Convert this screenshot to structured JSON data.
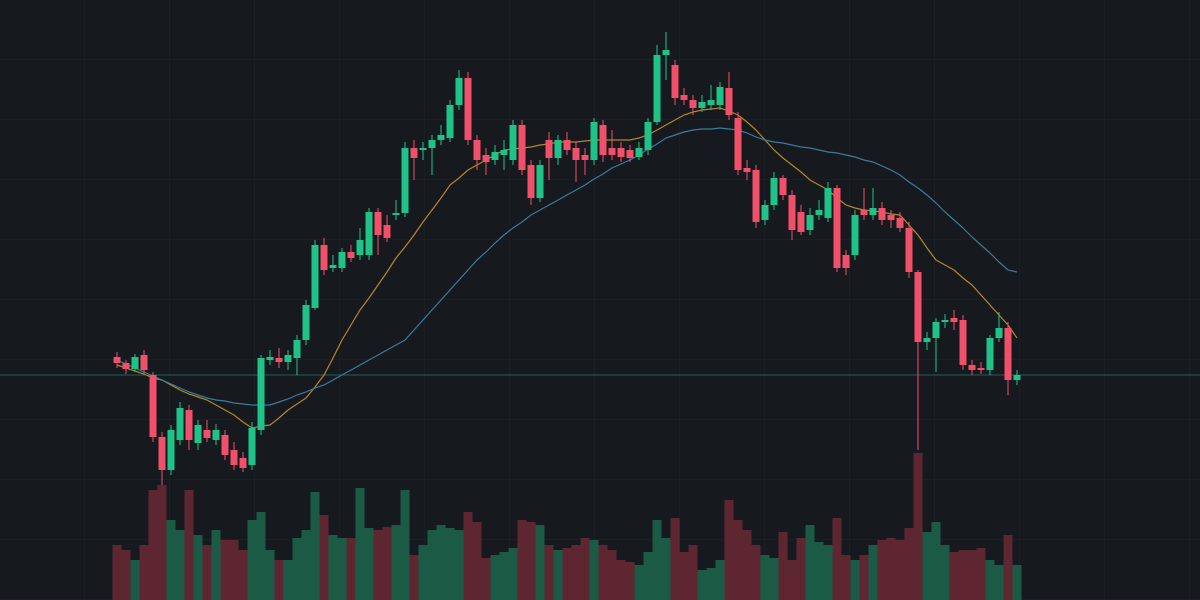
{
  "chart_data": {
    "type": "candlestick",
    "open": [
      243,
      237,
      231,
      245,
      225,
      163,
      130,
      160,
      190,
      157,
      170,
      160,
      165,
      150,
      142,
      135,
      170,
      240,
      242,
      238,
      242,
      260,
      292,
      355,
      332,
      332,
      348,
      345,
      345,
      388,
      375,
      385,
      387,
      452,
      450,
      452,
      460,
      462,
      495,
      522,
      460,
      445,
      440,
      445,
      440,
      475,
      435,
      402,
      460,
      442,
      460,
      452,
      445,
      440,
      475,
      452,
      452,
      450,
      443,
      450,
      478,
      545,
      535,
      505,
      500,
      492,
      495,
      495,
      512,
      482,
      432,
      430,
      380,
      395,
      422,
      405,
      388,
      370,
      385,
      382,
      412,
      345,
      345,
      390,
      385,
      392,
      385,
      382,
      372,
      328,
      258,
      262,
      278,
      282,
      280,
      235,
      232,
      230,
      262,
      272,
      220
    ],
    "high": [
      248,
      240,
      246,
      250,
      228,
      168,
      175,
      198,
      195,
      180,
      180,
      176,
      170,
      158,
      148,
      178,
      245,
      250,
      252,
      250,
      265,
      300,
      360,
      362,
      345,
      352,
      355,
      372,
      392,
      392,
      385,
      400,
      458,
      460,
      458,
      465,
      475,
      500,
      530,
      528,
      465,
      452,
      455,
      460,
      480,
      480,
      440,
      440,
      468,
      465,
      468,
      458,
      452,
      482,
      480,
      470,
      458,
      455,
      458,
      482,
      555,
      568,
      540,
      512,
      505,
      505,
      515,
      518,
      528,
      488,
      440,
      435,
      400,
      428,
      425,
      410,
      395,
      392,
      400,
      418,
      415,
      350,
      390,
      412,
      412,
      398,
      390,
      388,
      378,
      330,
      268,
      282,
      286,
      290,
      285,
      240,
      238,
      265,
      288,
      278,
      230
    ],
    "low": [
      232,
      226,
      228,
      226,
      158,
      115,
      125,
      155,
      150,
      150,
      158,
      155,
      140,
      130,
      128,
      130,
      165,
      235,
      232,
      230,
      225,
      255,
      290,
      325,
      328,
      328,
      338,
      340,
      340,
      345,
      358,
      380,
      383,
      420,
      440,
      425,
      455,
      458,
      490,
      455,
      430,
      425,
      435,
      430,
      435,
      425,
      395,
      398,
      420,
      435,
      445,
      418,
      425,
      435,
      438,
      440,
      438,
      438,
      440,
      445,
      475,
      520,
      495,
      495,
      485,
      488,
      490,
      490,
      480,
      425,
      420,
      372,
      375,
      390,
      400,
      360,
      365,
      365,
      380,
      378,
      328,
      325,
      340,
      380,
      380,
      375,
      372,
      368,
      322,
      150,
      250,
      228,
      272,
      270,
      230,
      225,
      226,
      225,
      258,
      205,
      215
    ],
    "close": [
      237,
      231,
      243,
      230,
      163,
      130,
      170,
      192,
      160,
      175,
      162,
      170,
      145,
      135,
      132,
      172,
      242,
      243,
      238,
      245,
      260,
      295,
      355,
      330,
      335,
      348,
      342,
      360,
      388,
      365,
      362,
      387,
      452,
      442,
      452,
      460,
      465,
      495,
      522,
      460,
      440,
      438,
      448,
      450,
      475,
      430,
      402,
      435,
      442,
      460,
      450,
      440,
      440,
      478,
      445,
      445,
      443,
      442,
      452,
      478,
      545,
      550,
      502,
      500,
      492,
      498,
      500,
      513,
      485,
      430,
      428,
      378,
      395,
      422,
      405,
      370,
      368,
      385,
      390,
      412,
      332,
      332,
      385,
      385,
      392,
      380,
      380,
      372,
      328,
      258,
      262,
      278,
      280,
      278,
      235,
      230,
      230,
      262,
      272,
      220,
      225
    ],
    "volume": [
      55,
      50,
      40,
      55,
      110,
      115,
      80,
      70,
      110,
      65,
      55,
      70,
      60,
      60,
      50,
      80,
      88,
      50,
      40,
      40,
      62,
      70,
      108,
      85,
      65,
      62,
      62,
      112,
      72,
      70,
      73,
      75,
      110,
      45,
      55,
      70,
      75,
      72,
      70,
      88,
      78,
      42,
      45,
      48,
      52,
      80,
      78,
      75,
      55,
      50,
      52,
      55,
      62,
      60,
      55,
      50,
      40,
      38,
      35,
      48,
      80,
      62,
      82,
      48,
      55,
      30,
      32,
      40,
      100,
      80,
      70,
      55,
      45,
      42,
      68,
      40,
      62,
      75,
      58,
      55,
      82,
      45,
      40,
      45,
      55,
      60,
      62,
      60,
      72,
      147,
      68,
      78,
      55,
      48,
      50,
      50,
      52,
      40,
      35,
      65,
      35
    ],
    "moving_averages": [
      {
        "color": "#b5852c",
        "values": [
          235,
          232,
          229,
          226,
          222,
          220,
          215,
          210,
          206,
          203,
          200,
          195,
          190,
          185,
          178,
          172,
          174,
          175,
          182,
          190,
          196,
          202,
          213,
          225,
          242,
          260,
          275,
          290,
          302,
          315,
          328,
          342,
          353,
          365,
          378,
          390,
          402,
          415,
          422,
          430,
          435,
          440,
          445,
          450,
          451,
          452,
          453,
          455,
          456,
          458,
          458,
          458,
          459,
          460,
          460,
          460,
          460,
          460,
          462,
          465,
          470,
          475,
          480,
          485,
          488,
          490,
          491,
          492,
          489,
          485,
          478,
          470,
          460,
          450,
          442,
          435,
          428,
          420,
          415,
          410,
          402,
          395,
          392,
          390,
          389,
          388,
          386,
          385,
          375,
          365,
          352,
          340,
          335,
          330,
          322,
          315,
          305,
          295,
          285,
          275,
          262
        ]
      },
      {
        "color": "#3b7a9c",
        "values": [
          240,
          236,
          232,
          228,
          224,
          220,
          216,
          212,
          208,
          205,
          202,
          200,
          199,
          197,
          196,
          195,
          195,
          195,
          198,
          201,
          205,
          208,
          212,
          215,
          220,
          225,
          230,
          235,
          240,
          245,
          250,
          255,
          260,
          270,
          280,
          290,
          300,
          310,
          320,
          330,
          340,
          348,
          357,
          365,
          372,
          378,
          385,
          390,
          395,
          400,
          405,
          410,
          415,
          421,
          426,
          432,
          436,
          440,
          445,
          451,
          456,
          462,
          465,
          468,
          470,
          471,
          471,
          472,
          471,
          470,
          467,
          463,
          460,
          458,
          457,
          455,
          453,
          452,
          450,
          448,
          447,
          445,
          443,
          440,
          438,
          434,
          430,
          425,
          418,
          412,
          405,
          397,
          388,
          380,
          372,
          363,
          355,
          347,
          338,
          330,
          328
        ]
      }
    ],
    "price_line": {
      "value": 225,
      "color": "#1f5f5a"
    },
    "ylim": [
      0,
      600
    ],
    "volume_ylim": [
      0,
      600
    ],
    "up_color": "#1fc287",
    "down_color": "#f0506a",
    "volume_up_color": "#1b5a45",
    "volume_down_color": "#5e2631"
  }
}
